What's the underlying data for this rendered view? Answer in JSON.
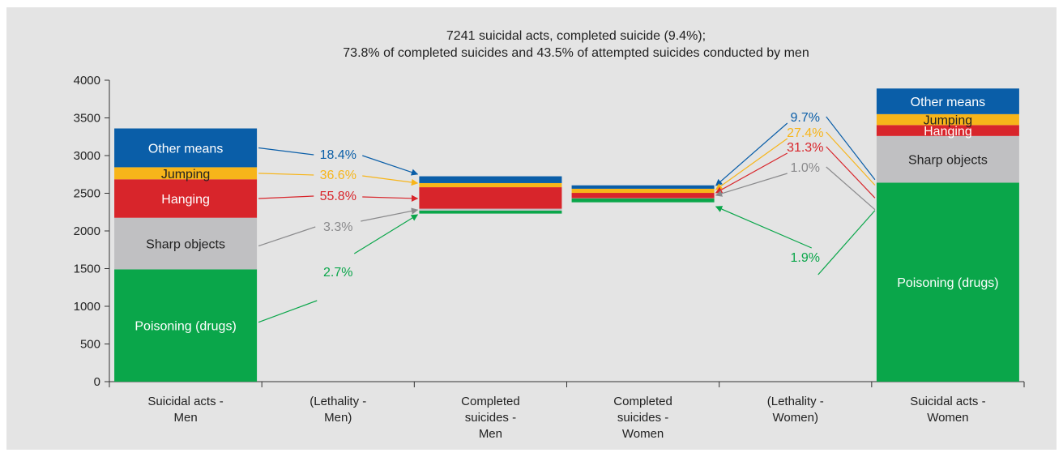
{
  "chart_data": {
    "type": "bar",
    "title": "7241 suicidal acts, completed suicide (9.4%);",
    "subtitle": "73.8% of completed suicides and 43.5% of attempted suicides conducted by men",
    "ylim": [
      0,
      4000
    ],
    "yticks": [
      "0",
      "500",
      "1000",
      "1500",
      "2000",
      "2500",
      "3000",
      "3500",
      "4000"
    ],
    "ytick_values": [
      0,
      500,
      1000,
      1500,
      2000,
      2500,
      3000,
      3500,
      4000
    ],
    "categories": [
      [
        "Suicidal acts -",
        "Men"
      ],
      [
        "(Lethality -",
        "Men)"
      ],
      [
        "Completed",
        "suicides -",
        "Men"
      ],
      [
        "Completed",
        "suicides -",
        "Women"
      ],
      [
        "(Lethality -",
        "Women)"
      ],
      [
        "Suicidal acts -",
        "Women"
      ]
    ],
    "series": [
      {
        "name": "Poisoning (drugs)",
        "color": "#0aa64a",
        "label_color": "#ffffff"
      },
      {
        "name": "Sharp objects",
        "color": "#c0c0c2",
        "label_color": "#222222"
      },
      {
        "name": "Hanging",
        "color": "#d8252b",
        "label_color": "#ffffff"
      },
      {
        "name": "Jumping",
        "color": "#f7b51a",
        "label_color": "#222222"
      },
      {
        "name": "Other means",
        "color": "#0a5ea8",
        "label_color": "#ffffff"
      }
    ],
    "bars": [
      {
        "category_index": 0,
        "base": 0,
        "values": [
          1490,
          685,
          510,
          160,
          515
        ],
        "show_labels": true
      },
      {
        "category_index": 2,
        "base": 2230,
        "values": [
          40,
          25,
          285,
          55,
          90
        ],
        "show_labels": false
      },
      {
        "category_index": 3,
        "base": 2380,
        "values": [
          50,
          5,
          70,
          55,
          45
        ],
        "show_labels": false
      },
      {
        "category_index": 5,
        "base": 0,
        "values": [
          2640,
          620,
          145,
          145,
          340
        ],
        "show_labels": true
      }
    ],
    "lethality": {
      "men": [
        {
          "series": "Other means",
          "text": "18.4%",
          "color": "#0a5ea8"
        },
        {
          "series": "Jumping",
          "text": "36.6%",
          "color": "#f7b51a"
        },
        {
          "series": "Hanging",
          "text": "55.8%",
          "color": "#d8252b"
        },
        {
          "series": "Sharp objects",
          "text": "3.3%",
          "color": "#8a8a8c"
        },
        {
          "series": "Poisoning (drugs)",
          "text": "2.7%",
          "color": "#0aa64a"
        }
      ],
      "women": [
        {
          "series": "Other means",
          "text": "9.7%",
          "color": "#0a5ea8"
        },
        {
          "series": "Jumping",
          "text": "27.4%",
          "color": "#f7b51a"
        },
        {
          "series": "Hanging",
          "text": "31.3%",
          "color": "#d8252b"
        },
        {
          "series": "Sharp objects",
          "text": "1.0%",
          "color": "#8a8a8c"
        },
        {
          "series": "Poisoning (drugs)",
          "text": "1.9%",
          "color": "#0aa64a"
        }
      ]
    },
    "grid": false,
    "legend": "none"
  }
}
